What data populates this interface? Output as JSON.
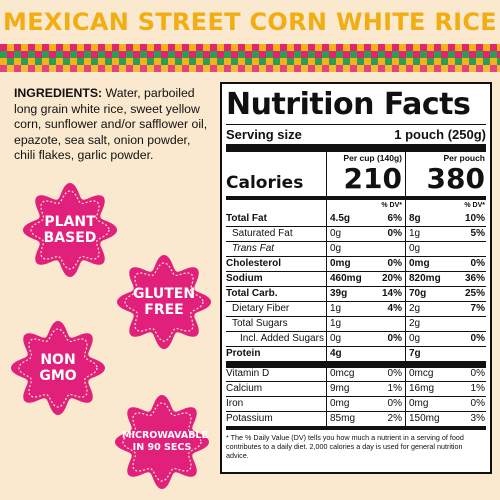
{
  "title": "MEXICAN STREET CORN WHITE RICE",
  "ingredients": {
    "label": "INGREDIENTS:",
    "text": " Water, parboiled long grain white rice, sweet yellow corn, sunflower and/or safflower oil, epazote, sea salt, onion powder, chili flakes, garlic powder."
  },
  "badges": [
    {
      "label": "PLANT\nBASED",
      "color": "#e0207a"
    },
    {
      "label": "GLUTEN\nFREE",
      "color": "#e0207a"
    },
    {
      "label": "NON\nGMO",
      "color": "#e0207a"
    },
    {
      "label": "MICROWAVABLE\nIN 90 SECS",
      "color": "#e0207a"
    }
  ],
  "nutrition": {
    "heading": "Nutrition Facts",
    "serving_label": "Serving size",
    "serving_value": "1 pouch (250g)",
    "col1_header": "Per cup (140g)",
    "col2_header": "Per pouch",
    "calories_label": "Calories",
    "calories_1": "210",
    "calories_2": "380",
    "dv_header": "% DV*",
    "rows": [
      {
        "name": "Total Fat",
        "v1": "4.5g",
        "d1": "6%",
        "v2": "8g",
        "d2": "10%",
        "style": "bold"
      },
      {
        "name": "Saturated Fat",
        "v1": "0g",
        "d1": "0%",
        "v2": "1g",
        "d2": "5%",
        "style": "indent"
      },
      {
        "name": "Trans Fat",
        "v1": "0g",
        "d1": "",
        "v2": "0g",
        "d2": "",
        "style": "indent ital"
      },
      {
        "name": "Cholesterol",
        "v1": "0mg",
        "d1": "0%",
        "v2": "0mg",
        "d2": "0%",
        "style": "bold"
      },
      {
        "name": "Sodium",
        "v1": "460mg",
        "d1": "20%",
        "v2": "820mg",
        "d2": "36%",
        "style": "bold"
      },
      {
        "name": "Total Carb.",
        "v1": "39g",
        "d1": "14%",
        "v2": "70g",
        "d2": "25%",
        "style": "bold"
      },
      {
        "name": "Dietary Fiber",
        "v1": "1g",
        "d1": "4%",
        "v2": "2g",
        "d2": "7%",
        "style": "indent"
      },
      {
        "name": "Total Sugars",
        "v1": "1g",
        "d1": "",
        "v2": "2g",
        "d2": "",
        "style": "indent"
      },
      {
        "name": "Incl. Added Sugars",
        "v1": "0g",
        "d1": "0%",
        "v2": "0g",
        "d2": "0%",
        "style": "indent2"
      },
      {
        "name": "Protein",
        "v1": "4g",
        "d1": "",
        "v2": "7g",
        "d2": "",
        "style": "bold"
      }
    ],
    "vitamins": [
      {
        "name": "Vitamin D",
        "v1": "0mcg",
        "d1": "0%",
        "v2": "0mcg",
        "d2": "0%"
      },
      {
        "name": "Calcium",
        "v1": "9mg",
        "d1": "1%",
        "v2": "16mg",
        "d2": "1%"
      },
      {
        "name": "Iron",
        "v1": "0mg",
        "d1": "0%",
        "v2": "0mg",
        "d2": "0%"
      },
      {
        "name": "Potassium",
        "v1": "85mg",
        "d1": "2%",
        "v2": "150mg",
        "d2": "3%"
      }
    ],
    "footnote": "* The % Daily Value (DV) tells you how much a nutrient in a serving of food contributes to a daily diet. 2,000 calories a day is used for general nutrition advice."
  }
}
